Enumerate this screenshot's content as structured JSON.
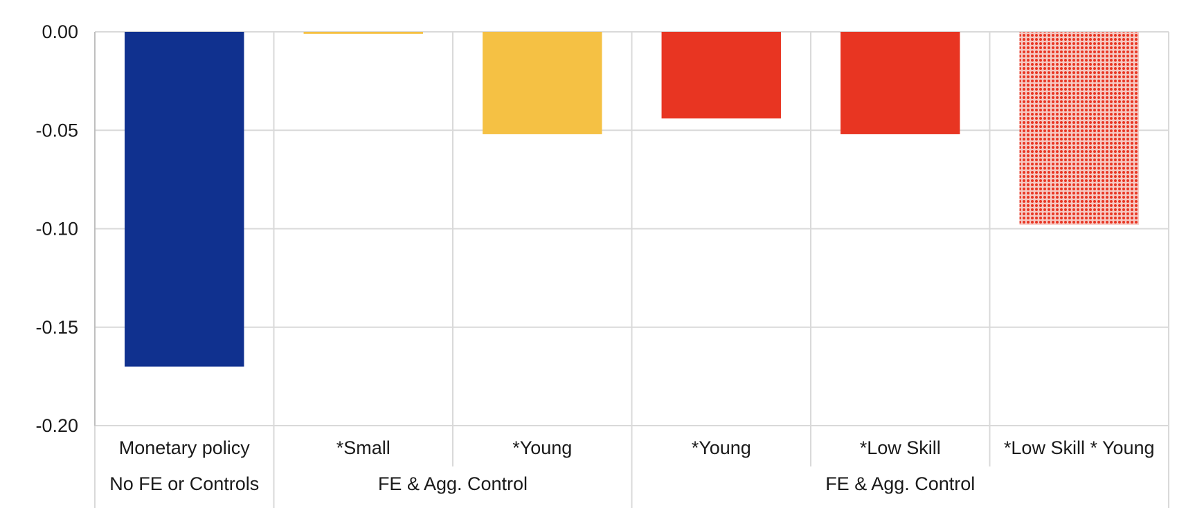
{
  "chart_data": {
    "type": "bar",
    "ylim": [
      -0.2,
      0.0
    ],
    "yticks": [
      0.0,
      -0.05,
      -0.1,
      -0.15,
      -0.2
    ],
    "ytick_labels": [
      "0.00",
      "-0.05",
      "-0.10",
      "-0.15",
      "-0.20"
    ],
    "grid": true,
    "categories": [
      "Monetary policy",
      "*Small",
      "*Young",
      "*Young",
      "*Low Skill",
      "*Low Skill * Young"
    ],
    "values": [
      -0.17,
      -0.001,
      -0.052,
      -0.044,
      -0.052,
      -0.098
    ],
    "colors": [
      "#10318f",
      "#f5c144",
      "#f5c144",
      "#e83522",
      "#e83522",
      "#e83522"
    ],
    "patterns": [
      "solid",
      "solid",
      "solid",
      "solid",
      "solid",
      "dotted"
    ],
    "groups": [
      {
        "label": "No FE or Controls",
        "span": 1
      },
      {
        "label": "FE & Agg. Control",
        "span": 2
      },
      {
        "label": "FE & Agg. Control",
        "span": 3
      }
    ]
  }
}
